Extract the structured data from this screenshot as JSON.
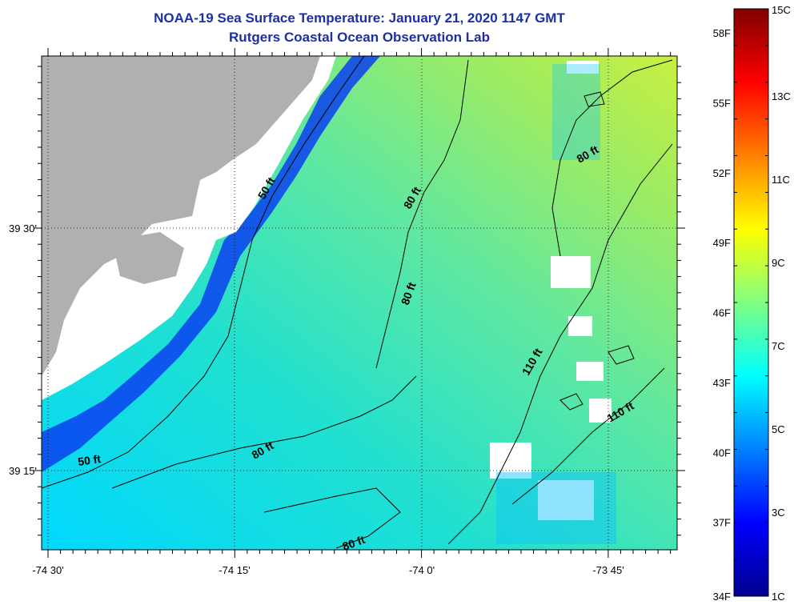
{
  "title": "NOAA-19 Sea Surface Temperature:  January 21, 2020 1147 GMT",
  "subtitle": "Rutgers Coastal Ocean Observation Lab",
  "axes": {
    "x_ticks": [
      "-74 30'",
      "-74 15'",
      "-74 0'",
      "-73 45'"
    ],
    "y_ticks": [
      "39 30'",
      "39 15'"
    ]
  },
  "contours": [
    "50 ft",
    "50 ft",
    "80 ft",
    "80 ft",
    "80 ft",
    "80 ft",
    "80 ft",
    "110 ft",
    "110 ft"
  ],
  "colorbar": {
    "fahrenheit": [
      "58F",
      "55F",
      "52F",
      "49F",
      "46F",
      "43F",
      "40F",
      "37F",
      "34F"
    ],
    "celsius": [
      "15C",
      "13C",
      "11C",
      "9C",
      "7C",
      "5C",
      "3C",
      "1C"
    ],
    "colors": [
      "#00008f",
      "#0000ff",
      "#0080ff",
      "#00ffff",
      "#80ff80",
      "#ffff00",
      "#ff8000",
      "#ff0000",
      "#800000"
    ]
  },
  "colors": {
    "title": "#1c2fa5",
    "land": "#b0b0b0",
    "nodata": "#ffffff"
  }
}
